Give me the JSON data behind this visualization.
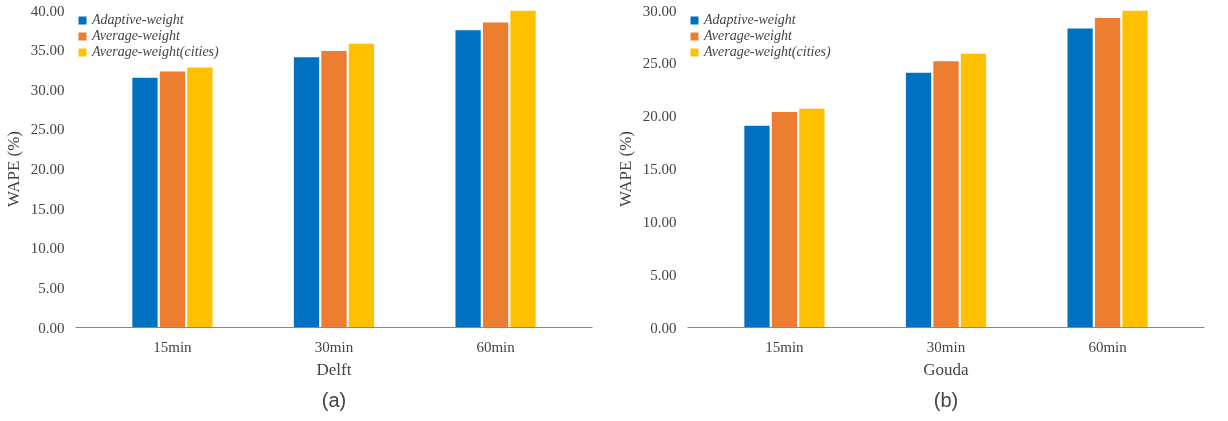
{
  "chart_data": [
    {
      "type": "bar",
      "xlabel": "Delft",
      "ylabel": "WAPE (%)",
      "annotations": [
        "(a)"
      ],
      "categories": [
        "15min",
        "30min",
        "60min"
      ],
      "series": [
        {
          "name": "Adaptive-weight",
          "color": "#0070c0",
          "values": [
            31.5,
            34.1,
            37.5
          ]
        },
        {
          "name": "Average-weight",
          "color": "#ed7d31",
          "values": [
            32.3,
            34.9,
            38.5
          ]
        },
        {
          "name": "Average-weight(cities)",
          "color": "#ffc000",
          "values": [
            32.8,
            35.8,
            40.0
          ]
        }
      ],
      "ylim": [
        0,
        40
      ],
      "yticks": [
        {
          "value": 0,
          "label": "0.00"
        },
        {
          "value": 5,
          "label": "5.00"
        },
        {
          "value": 10,
          "label": "10.00"
        },
        {
          "value": 15,
          "label": "15.00"
        },
        {
          "value": 20,
          "label": "20.00"
        },
        {
          "value": 25,
          "label": "25.00"
        },
        {
          "value": 30,
          "label": "30.00"
        },
        {
          "value": 35,
          "label": "35.00"
        },
        {
          "value": 40,
          "label": "40.00"
        }
      ],
      "grid": false,
      "legend": "top left"
    },
    {
      "type": "bar",
      "xlabel": "Gouda",
      "ylabel": "WAPE (%)",
      "annotations": [
        "(b)"
      ],
      "categories": [
        "15min",
        "30min",
        "60min"
      ],
      "series": [
        {
          "name": "Adaptive-weight",
          "color": "#0070c0",
          "values": [
            19.1,
            24.1,
            28.3
          ]
        },
        {
          "name": "Average-weight",
          "color": "#ed7d31",
          "values": [
            20.4,
            25.2,
            29.3
          ]
        },
        {
          "name": "Average-weight(cities)",
          "color": "#ffc000",
          "values": [
            20.7,
            25.9,
            30.0
          ]
        }
      ],
      "ylim": [
        0,
        30
      ],
      "yticks": [
        {
          "value": 0,
          "label": "0.00"
        },
        {
          "value": 5,
          "label": "5.00"
        },
        {
          "value": 10,
          "label": "10.00"
        },
        {
          "value": 15,
          "label": "15.00"
        },
        {
          "value": 20,
          "label": "20.00"
        },
        {
          "value": 25,
          "label": "25.00"
        },
        {
          "value": 30,
          "label": "30.00"
        }
      ],
      "grid": false,
      "legend": "top left"
    }
  ]
}
